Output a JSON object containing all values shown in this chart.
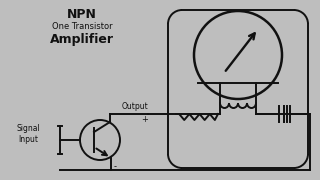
{
  "title_line1": "NPN",
  "title_line2": "One Transistor",
  "title_line3": "Amplifier",
  "label_output": "Output",
  "label_signal": "Signal\nInput",
  "label_plus": "+",
  "label_minus": "-",
  "bg_color": "#bebebe",
  "fg_color": "#111111",
  "line_color": "#111111",
  "lw": 1.4
}
